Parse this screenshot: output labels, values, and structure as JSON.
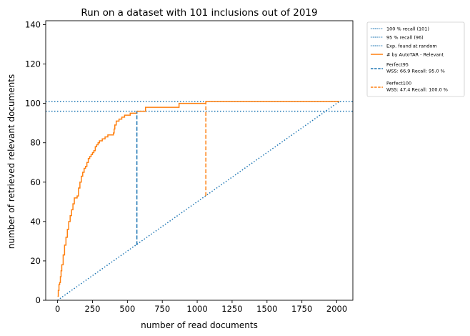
{
  "chart_data": {
    "type": "line",
    "title": "Run on a dataset with 101 inclusions out of 2019",
    "xlabel": "number of read documents",
    "ylabel": "number of retrieved relevant documents",
    "xlim": [
      -85,
      2115
    ],
    "ylim": [
      0,
      142
    ],
    "xticks": [
      0,
      250,
      500,
      750,
      1000,
      1250,
      1500,
      1750,
      2000
    ],
    "yticks": [
      0,
      20,
      40,
      60,
      80,
      100,
      120,
      140
    ],
    "grid": false,
    "legend_position": "outside-top-right",
    "legend": [
      {
        "label": "100 % recall (101)",
        "style": "dotted",
        "color": "#1f77b4"
      },
      {
        "label": "95 % recall (96)",
        "style": "dotted",
        "color": "#1f77b4"
      },
      {
        "label": "Exp. found at random",
        "style": "dotted",
        "color": "#1f77b4"
      },
      {
        "label": "# by AutoTAR - Relevant",
        "style": "solid",
        "color": "#ff7f0e"
      },
      {
        "label": "Perfect95",
        "label2": " WSS: 66.9 Recall: 95.0 %",
        "style": "dashed",
        "color": "#1f77b4"
      },
      {
        "label": "Perfect100",
        "label2": " WSS: 47.4 Recall: 100.0 %",
        "style": "dashed",
        "color": "#ff7f0e"
      }
    ],
    "series": [
      {
        "name": "100 % recall (101)",
        "kind": "hline",
        "y": 101,
        "color": "#1f77b4",
        "style": "dotted"
      },
      {
        "name": "95 % recall (96)",
        "kind": "hline",
        "y": 96,
        "color": "#1f77b4",
        "style": "dotted"
      },
      {
        "name": "Exp. found at random",
        "kind": "line",
        "x": [
          0,
          2019
        ],
        "y": [
          0,
          101
        ],
        "color": "#1f77b4",
        "style": "dotted"
      },
      {
        "name": "# by AutoTAR - Relevant",
        "kind": "line",
        "color": "#ff7f0e",
        "style": "solid",
        "x": [
          0,
          5,
          10,
          15,
          20,
          25,
          30,
          40,
          50,
          60,
          70,
          80,
          90,
          100,
          110,
          120,
          130,
          140,
          150,
          160,
          170,
          180,
          190,
          200,
          210,
          220,
          230,
          240,
          250,
          260,
          270,
          280,
          290,
          300,
          320,
          340,
          360,
          380,
          400,
          405,
          410,
          420,
          440,
          460,
          480,
          500,
          520,
          540,
          560,
          568,
          570,
          600,
          630,
          700,
          800,
          850,
          870,
          1000,
          1060,
          1062,
          1200,
          1500,
          1800,
          2000,
          2019
        ],
        "y": [
          2,
          5,
          8,
          9,
          12,
          15,
          18,
          23,
          28,
          32,
          36,
          40,
          43,
          46,
          49,
          52,
          52,
          53,
          57,
          60,
          63,
          65,
          67,
          68,
          70,
          72,
          73,
          74,
          75,
          76,
          78,
          79,
          80,
          81,
          82,
          83,
          84,
          84,
          85,
          87,
          89,
          91,
          92,
          93,
          94,
          94,
          95,
          95,
          95,
          96,
          96,
          96,
          98,
          98,
          98,
          98,
          100,
          100,
          100,
          101,
          101,
          101,
          101,
          101,
          101
        ]
      },
      {
        "name": "Perfect95",
        "kind": "vline",
        "x": 568,
        "y_from": 28,
        "y_to": 96,
        "color": "#1f77b4",
        "style": "dashed"
      },
      {
        "name": "Perfect100",
        "kind": "vline",
        "x": 1062,
        "y_from": 53,
        "y_to": 101,
        "color": "#ff7f0e",
        "style": "dashed"
      }
    ]
  }
}
